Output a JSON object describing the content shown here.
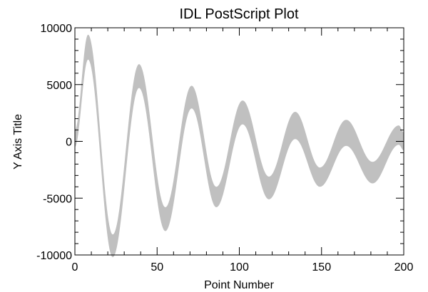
{
  "chart_data": {
    "type": "area",
    "title": "IDL PostScript Plot",
    "xlabel": "Point Number",
    "ylabel": "Y Axis Title",
    "xlim": [
      0,
      200
    ],
    "ylim": [
      -10000,
      10000
    ],
    "xticks": [
      0,
      50,
      100,
      150,
      200
    ],
    "xtick_labels": [
      "0",
      "50",
      "100",
      "150",
      "200"
    ],
    "yticks": [
      -10000,
      -5000,
      0,
      5000,
      10000
    ],
    "ytick_labels": [
      "-10000",
      "-5000",
      "0",
      "5000",
      "10000"
    ],
    "grid": false,
    "band_color": "#c0c0c0",
    "series": [
      {
        "x": [
          0,
          8,
          23,
          39,
          55,
          71,
          86,
          102,
          118,
          134,
          149,
          165,
          181,
          197,
          200
        ],
        "upper": [
          1000,
          9400,
          -8200,
          6800,
          -5800,
          4900,
          -4000,
          3600,
          -3100,
          2600,
          -2300,
          1900,
          -1800,
          1400,
          800
        ],
        "lower": [
          -500,
          7200,
          -10200,
          4700,
          -7900,
          2900,
          -5800,
          1500,
          -5100,
          200,
          -4000,
          -400,
          -3700,
          -300,
          -800
        ]
      }
    ]
  }
}
